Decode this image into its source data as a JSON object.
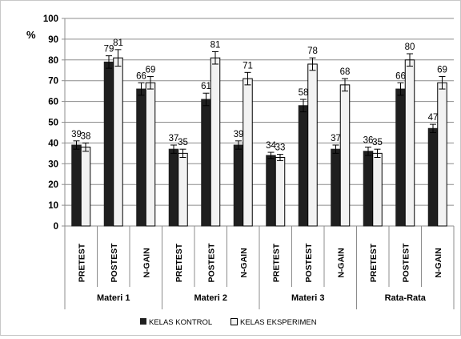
{
  "chart_data": {
    "type": "bar",
    "y_unit_label": "%",
    "ylim": [
      0,
      100
    ],
    "y_ticks": [
      0,
      10,
      20,
      30,
      40,
      50,
      60,
      70,
      80,
      90,
      100
    ],
    "grid": true,
    "legend_position": "bottom",
    "groups": [
      {
        "label": "Materi 1",
        "categories": [
          "PRETEST",
          "POSTEST",
          "N-GAIN"
        ]
      },
      {
        "label": "Materi 2",
        "categories": [
          "PRETEST",
          "POSTEST",
          "N-GAIN"
        ]
      },
      {
        "label": "Materi 3",
        "categories": [
          "PRETEST",
          "POSTEST",
          "N-GAIN"
        ]
      },
      {
        "label": "Rata-Rata",
        "categories": [
          "PRETEST",
          "POSTEST",
          "N-GAIN"
        ]
      }
    ],
    "series": [
      {
        "name": "KELAS KONTROL",
        "color": "#1f1f1f",
        "values": [
          39,
          79,
          66,
          37,
          61,
          39,
          34,
          58,
          37,
          36,
          66,
          47
        ],
        "errors": [
          2,
          3,
          3,
          2,
          3,
          2,
          1.5,
          3,
          2,
          2,
          3,
          2
        ]
      },
      {
        "name": "KELAS EKSPERIMEN",
        "color": "#f2f2f2",
        "values": [
          38,
          81,
          69,
          35,
          81,
          71,
          33,
          78,
          68,
          35,
          80,
          69
        ],
        "errors": [
          2,
          4,
          3,
          2,
          3,
          3,
          1.5,
          3,
          3,
          2,
          3,
          3
        ]
      }
    ]
  }
}
